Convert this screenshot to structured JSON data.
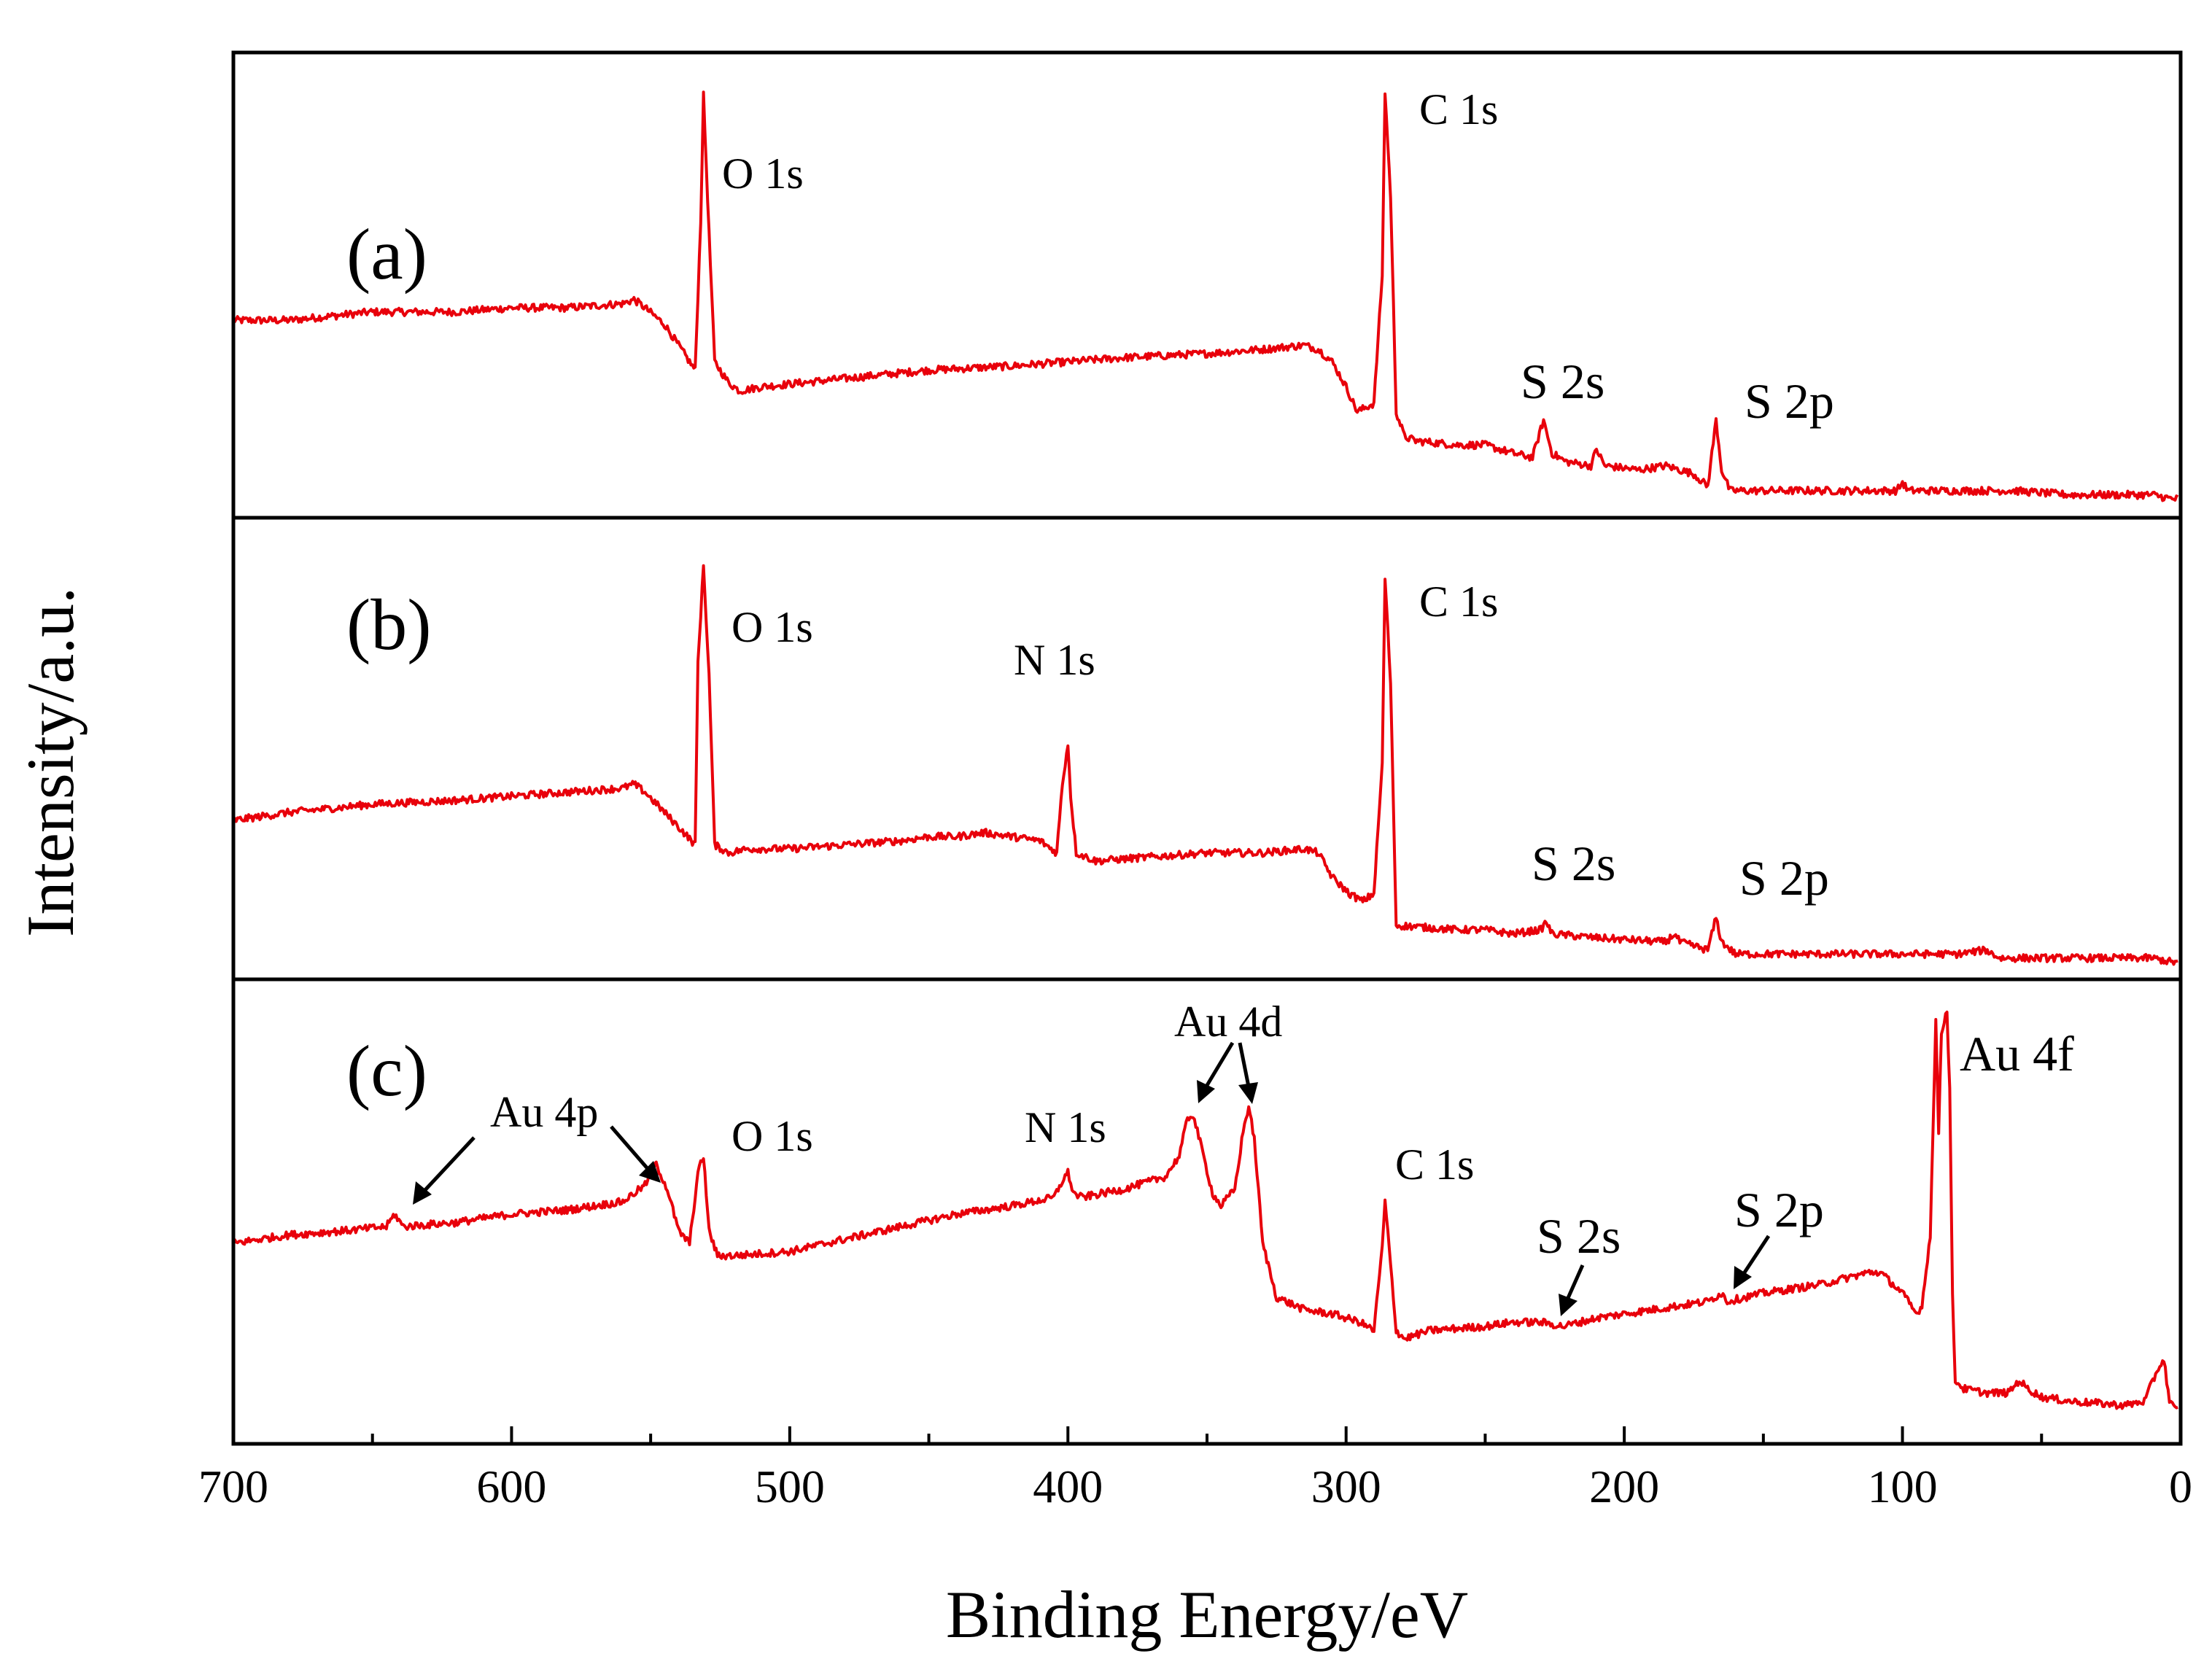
{
  "chart_data": {
    "type": "line",
    "xlabel": "Binding Energy/eV",
    "ylabel": "Intensity/a.u.",
    "xlim": [
      700,
      0
    ],
    "x_ticks": [
      700,
      600,
      500,
      400,
      300,
      200,
      100,
      0
    ],
    "y_units": "arbitrary (normalized 0-1 per panel)",
    "line_color": "#e8000b",
    "panels": [
      {
        "label": "(a)",
        "baseline": [
          [
            700,
            0.44
          ],
          [
            680,
            0.44
          ],
          [
            650,
            0.46
          ],
          [
            620,
            0.46
          ],
          [
            600,
            0.47
          ],
          [
            580,
            0.47
          ],
          [
            560,
            0.48
          ],
          [
            556,
            0.49
          ],
          [
            552,
            0.47
          ],
          [
            545,
            0.43
          ],
          [
            538,
            0.36
          ],
          [
            534,
            0.32
          ],
          [
            532,
            0.68
          ],
          [
            531,
            0.98
          ],
          [
            529,
            0.65
          ],
          [
            527,
            0.34
          ],
          [
            522,
            0.29
          ],
          [
            518,
            0.27
          ],
          [
            510,
            0.28
          ],
          [
            480,
            0.3
          ],
          [
            450,
            0.32
          ],
          [
            420,
            0.33
          ],
          [
            400,
            0.34
          ],
          [
            380,
            0.35
          ],
          [
            350,
            0.36
          ],
          [
            330,
            0.37
          ],
          [
            315,
            0.38
          ],
          [
            310,
            0.37
          ],
          [
            305,
            0.34
          ],
          [
            300,
            0.28
          ],
          [
            296,
            0.22
          ],
          [
            290,
            0.24
          ],
          [
            287,
            0.55
          ],
          [
            286,
            0.99
          ],
          [
            284,
            0.74
          ],
          [
            282,
            0.22
          ],
          [
            279,
            0.16
          ],
          [
            275,
            0.15
          ],
          [
            260,
            0.14
          ],
          [
            250,
            0.14
          ],
          [
            240,
            0.12
          ],
          [
            233,
            0.11
          ],
          [
            229,
            0.2
          ],
          [
            226,
            0.12
          ],
          [
            221,
            0.1
          ],
          [
            212,
            0.09
          ],
          [
            210,
            0.13
          ],
          [
            207,
            0.09
          ],
          [
            195,
            0.08
          ],
          [
            185,
            0.09
          ],
          [
            175,
            0.07
          ],
          [
            170,
            0.04
          ],
          [
            167,
            0.2
          ],
          [
            165,
            0.08
          ],
          [
            162,
            0.03
          ],
          [
            155,
            0.03
          ],
          [
            140,
            0.03
          ],
          [
            110,
            0.03
          ],
          [
            102,
            0.03
          ],
          [
            100,
            0.05
          ],
          [
            98,
            0.03
          ],
          [
            80,
            0.03
          ],
          [
            60,
            0.03
          ],
          [
            40,
            0.02
          ],
          [
            20,
            0.02
          ],
          [
            10,
            0.02
          ],
          [
            3,
            0.01
          ]
        ],
        "peaks": [
          {
            "label": "O 1s",
            "position_eV": 531
          },
          {
            "label": "C 1s",
            "position_eV": 285
          },
          {
            "label": "S 2s",
            "position_eV": 228
          },
          {
            "label": "S 2p",
            "position_eV": 164
          }
        ]
      },
      {
        "label": "(b)",
        "baseline": [
          [
            700,
            0.36
          ],
          [
            680,
            0.38
          ],
          [
            650,
            0.4
          ],
          [
            620,
            0.41
          ],
          [
            600,
            0.42
          ],
          [
            580,
            0.43
          ],
          [
            560,
            0.44
          ],
          [
            556,
            0.45
          ],
          [
            552,
            0.43
          ],
          [
            545,
            0.38
          ],
          [
            538,
            0.33
          ],
          [
            534,
            0.3
          ],
          [
            533,
            0.75
          ],
          [
            531,
            0.99
          ],
          [
            529,
            0.72
          ],
          [
            527,
            0.3
          ],
          [
            522,
            0.28
          ],
          [
            515,
            0.29
          ],
          [
            500,
            0.29
          ],
          [
            480,
            0.3
          ],
          [
            460,
            0.31
          ],
          [
            450,
            0.32
          ],
          [
            440,
            0.32
          ],
          [
            430,
            0.33
          ],
          [
            420,
            0.32
          ],
          [
            410,
            0.31
          ],
          [
            404,
            0.28
          ],
          [
            402,
            0.45
          ],
          [
            400,
            0.55
          ],
          [
            399,
            0.42
          ],
          [
            397,
            0.28
          ],
          [
            390,
            0.26
          ],
          [
            370,
            0.27
          ],
          [
            350,
            0.28
          ],
          [
            330,
            0.28
          ],
          [
            315,
            0.29
          ],
          [
            310,
            0.28
          ],
          [
            305,
            0.22
          ],
          [
            299,
            0.18
          ],
          [
            294,
            0.16
          ],
          [
            290,
            0.18
          ],
          [
            287,
            0.5
          ],
          [
            286,
            0.96
          ],
          [
            284,
            0.7
          ],
          [
            282,
            0.1
          ],
          [
            280,
            0.1
          ],
          [
            260,
            0.09
          ],
          [
            250,
            0.09
          ],
          [
            240,
            0.08
          ],
          [
            230,
            0.09
          ],
          [
            228,
            0.11
          ],
          [
            226,
            0.08
          ],
          [
            210,
            0.07
          ],
          [
            185,
            0.06
          ],
          [
            182,
            0.08
          ],
          [
            180,
            0.06
          ],
          [
            170,
            0.04
          ],
          [
            167,
            0.12
          ],
          [
            165,
            0.06
          ],
          [
            160,
            0.03
          ],
          [
            150,
            0.03
          ],
          [
            100,
            0.03
          ],
          [
            80,
            0.03
          ],
          [
            70,
            0.04
          ],
          [
            65,
            0.02
          ],
          [
            40,
            0.02
          ],
          [
            20,
            0.02
          ],
          [
            10,
            0.02
          ],
          [
            3,
            0.01
          ]
        ],
        "peaks": [
          {
            "label": "O 1s",
            "position_eV": 531
          },
          {
            "label": "N 1s",
            "position_eV": 400
          },
          {
            "label": "C 1s",
            "position_eV": 285
          },
          {
            "label": "S 2s",
            "position_eV": 228
          },
          {
            "label": "S 2p",
            "position_eV": 164
          }
        ]
      },
      {
        "label": "(c)",
        "baseline": [
          [
            700,
            0.43
          ],
          [
            680,
            0.45
          ],
          [
            660,
            0.46
          ],
          [
            645,
            0.47
          ],
          [
            642,
            0.5
          ],
          [
            639,
            0.47
          ],
          [
            620,
            0.48
          ],
          [
            600,
            0.5
          ],
          [
            580,
            0.51
          ],
          [
            560,
            0.53
          ],
          [
            552,
            0.57
          ],
          [
            548,
            0.62
          ],
          [
            544,
            0.56
          ],
          [
            540,
            0.46
          ],
          [
            536,
            0.43
          ],
          [
            533,
            0.6
          ],
          [
            531,
            0.64
          ],
          [
            529,
            0.46
          ],
          [
            526,
            0.4
          ],
          [
            520,
            0.4
          ],
          [
            500,
            0.41
          ],
          [
            480,
            0.44
          ],
          [
            460,
            0.47
          ],
          [
            440,
            0.5
          ],
          [
            420,
            0.52
          ],
          [
            405,
            0.54
          ],
          [
            402,
            0.58
          ],
          [
            400,
            0.6
          ],
          [
            398,
            0.55
          ],
          [
            395,
            0.54
          ],
          [
            380,
            0.56
          ],
          [
            365,
            0.59
          ],
          [
            360,
            0.64
          ],
          [
            357,
            0.73
          ],
          [
            355,
            0.74
          ],
          [
            352,
            0.66
          ],
          [
            348,
            0.55
          ],
          [
            345,
            0.52
          ],
          [
            340,
            0.56
          ],
          [
            337,
            0.7
          ],
          [
            335,
            0.76
          ],
          [
            333,
            0.68
          ],
          [
            330,
            0.43
          ],
          [
            325,
            0.3
          ],
          [
            315,
            0.27
          ],
          [
            305,
            0.26
          ],
          [
            295,
            0.24
          ],
          [
            290,
            0.22
          ],
          [
            287,
            0.42
          ],
          [
            286,
            0.53
          ],
          [
            284,
            0.38
          ],
          [
            282,
            0.22
          ],
          [
            279,
            0.2
          ],
          [
            270,
            0.22
          ],
          [
            250,
            0.23
          ],
          [
            240,
            0.24
          ],
          [
            230,
            0.24
          ],
          [
            222,
            0.23
          ],
          [
            210,
            0.25
          ],
          [
            200,
            0.26
          ],
          [
            180,
            0.28
          ],
          [
            170,
            0.29
          ],
          [
            165,
            0.31
          ],
          [
            163,
            0.29
          ],
          [
            150,
            0.31
          ],
          [
            130,
            0.33
          ],
          [
            118,
            0.35
          ],
          [
            112,
            0.36
          ],
          [
            108,
            0.36
          ],
          [
            100,
            0.31
          ],
          [
            95,
            0.26
          ],
          [
            93,
            0.28
          ],
          [
            90,
            0.45
          ],
          [
            88,
            0.96
          ],
          [
            87,
            0.7
          ],
          [
            86,
            0.94
          ],
          [
            84,
            0.99
          ],
          [
            83,
            0.8
          ],
          [
            82,
            0.3
          ],
          [
            81,
            0.1
          ],
          [
            78,
            0.08
          ],
          [
            70,
            0.07
          ],
          [
            62,
            0.07
          ],
          [
            58,
            0.1
          ],
          [
            55,
            0.08
          ],
          [
            50,
            0.06
          ],
          [
            40,
            0.05
          ],
          [
            20,
            0.04
          ],
          [
            13,
            0.05
          ],
          [
            8,
            0.13
          ],
          [
            6,
            0.15
          ],
          [
            4,
            0.05
          ],
          [
            2,
            0.03
          ]
        ],
        "peaks": [
          {
            "label": "Au 4p",
            "position_eV": 642
          },
          {
            "label": "Au 4p",
            "position_eV": 547
          },
          {
            "label": "O 1s",
            "position_eV": 531
          },
          {
            "label": "N 1s",
            "position_eV": 400
          },
          {
            "label": "Au 4d",
            "position_eV": 355
          },
          {
            "label": "Au 4d",
            "position_eV": 335
          },
          {
            "label": "C 1s",
            "position_eV": 285
          },
          {
            "label": "S 2s",
            "position_eV": 228
          },
          {
            "label": "S 2p",
            "position_eV": 164
          },
          {
            "label": "Au 4f",
            "position_eV": 84
          }
        ]
      }
    ]
  },
  "labels": {
    "xlabel": "Binding Energy/eV",
    "ylabel": "Intensity/a.u.",
    "panel_a": "(a)",
    "panel_b": "(b)",
    "panel_c": "(c)",
    "a_O1s": "O 1s",
    "a_C1s": "C 1s",
    "a_S2s": "S 2s",
    "a_S2p": "S 2p",
    "b_O1s": "O 1s",
    "b_N1s": "N 1s",
    "b_C1s": "C 1s",
    "b_S2s": "S 2s",
    "b_S2p": "S 2p",
    "c_Au4p": "Au 4p",
    "c_O1s": "O 1s",
    "c_N1s": "N 1s",
    "c_Au4d": "Au 4d",
    "c_C1s": "C 1s",
    "c_S2s": "S 2s",
    "c_S2p": "S 2p",
    "c_Au4f": "Au 4f"
  }
}
